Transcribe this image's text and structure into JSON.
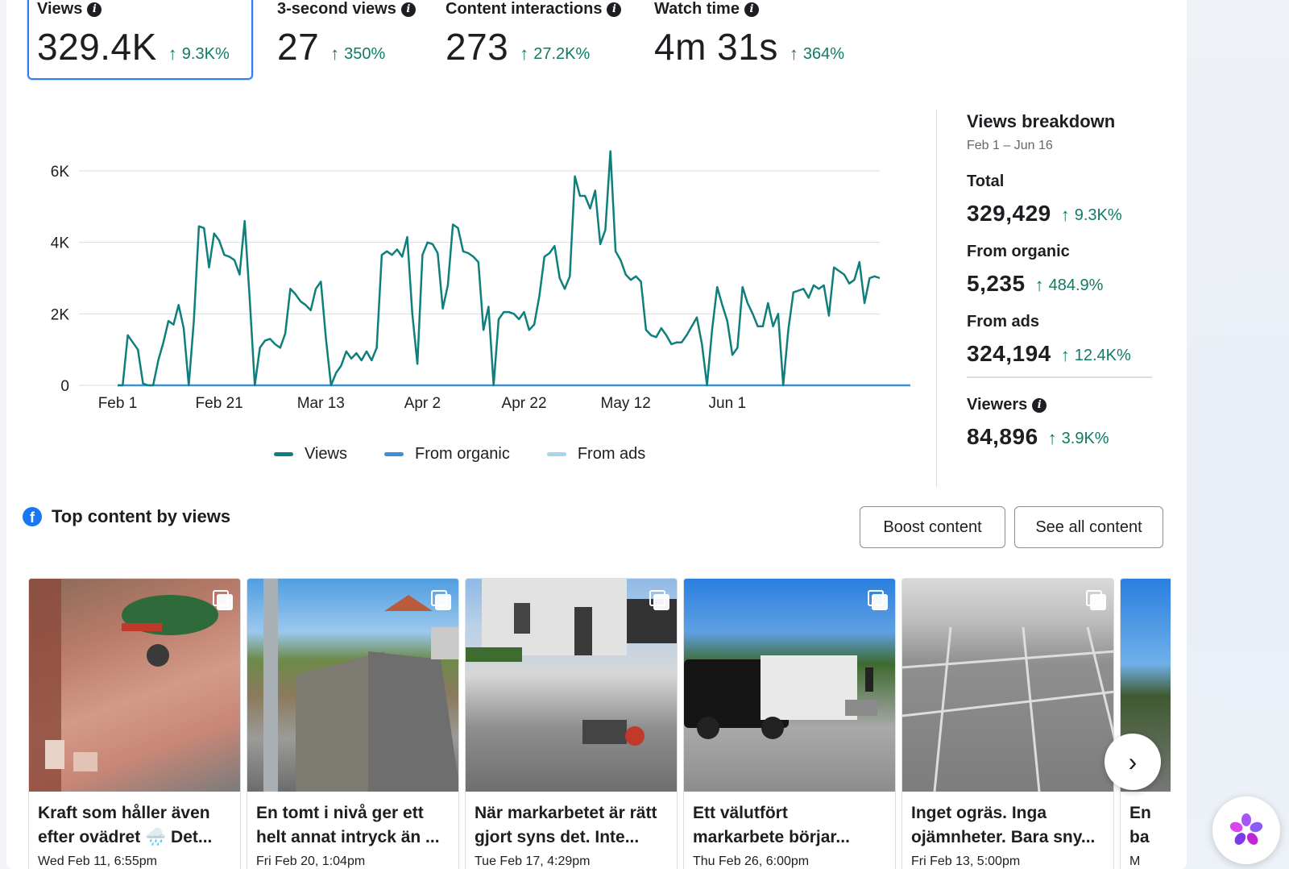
{
  "metrics": [
    {
      "label": "Views",
      "value": "329.4K",
      "delta": "9.3K%",
      "info": true,
      "selected": true
    },
    {
      "label": "3-second views",
      "value": "27",
      "delta": "350%",
      "info": true
    },
    {
      "label": "Content interactions",
      "value": "273",
      "delta": "27.2K%",
      "info": true
    },
    {
      "label": "Watch time",
      "value": "4m 31s",
      "delta": "364%",
      "info": true
    }
  ],
  "chart_data": {
    "type": "line",
    "x_ticks": [
      "Feb 1",
      "Feb 21",
      "Mar 13",
      "Apr 2",
      "Apr 22",
      "May 12",
      "Jun 1"
    ],
    "y_ticks": [
      "6K",
      "4K",
      "2K",
      "0"
    ],
    "ylim": [
      0,
      6000
    ],
    "x_range": [
      "Feb 1",
      "Jun 16"
    ],
    "grid": true,
    "legend_position": "bottom",
    "series": [
      {
        "name": "Views",
        "color": "#0e7f7a",
        "values": [
          0,
          0,
          1400,
          1200,
          1000,
          50,
          0,
          0,
          700,
          1200,
          1800,
          1700,
          2250,
          1600,
          0,
          1800,
          4450,
          4400,
          3300,
          4250,
          4050,
          3650,
          3600,
          3500,
          3100,
          4600,
          2400,
          0,
          1050,
          1250,
          1300,
          1150,
          1050,
          1450,
          2700,
          2550,
          2350,
          2250,
          2100,
          2700,
          2900,
          1300,
          0,
          350,
          550,
          950,
          750,
          900,
          700,
          950,
          700,
          1050,
          3650,
          3750,
          3650,
          3800,
          3600,
          4150,
          2000,
          600,
          3650,
          4000,
          3950,
          3700,
          2150,
          2800,
          4500,
          4400,
          3750,
          3700,
          3600,
          3450,
          1550,
          2200,
          0,
          1850,
          2050,
          2050,
          2000,
          1850,
          2050,
          1550,
          1700,
          2500,
          3600,
          3700,
          3900,
          3000,
          2700,
          3050,
          5850,
          5300,
          5300,
          4950,
          5450,
          3950,
          4350,
          6550,
          3750,
          3500,
          3100,
          2950,
          3050,
          2900,
          1550,
          1400,
          1350,
          1600,
          1400,
          1150,
          1200,
          1200,
          1400,
          1650,
          1900,
          1150,
          0,
          1550,
          2750,
          2250,
          1800,
          850,
          1050,
          2750,
          2300,
          2000,
          1650,
          1650,
          2300,
          1650,
          2000,
          0,
          1550,
          2600,
          2650,
          2700,
          2450,
          2800,
          2700,
          2800,
          1950,
          3300,
          3200,
          3100,
          2850,
          2950,
          3450,
          2300,
          3000,
          3050,
          3000
        ]
      },
      {
        "name": "From organic",
        "color": "#3b8ed8",
        "values": [
          0,
          0,
          0,
          0,
          0,
          0,
          0,
          0,
          0,
          0,
          0,
          0,
          0,
          0,
          0,
          0,
          0,
          0,
          0,
          0,
          0,
          0,
          0,
          0,
          0,
          0,
          0,
          0,
          0,
          0,
          0,
          0,
          0,
          0,
          0,
          0,
          0,
          0,
          0,
          0,
          0,
          0,
          0,
          0,
          0,
          0,
          0,
          0,
          0,
          0,
          0,
          0,
          0,
          0,
          0,
          0,
          0,
          0,
          0,
          0,
          0,
          0,
          0,
          0,
          0,
          0,
          0,
          0,
          0,
          0,
          0,
          0,
          0,
          0,
          0,
          0,
          0,
          0,
          0,
          0,
          0,
          0,
          0,
          0,
          0,
          0,
          0,
          0,
          0,
          0,
          0,
          0,
          0,
          0,
          0,
          0,
          0,
          0,
          0,
          0,
          0,
          0,
          0,
          0,
          0,
          0,
          0,
          0,
          0,
          0,
          0,
          0,
          0,
          0,
          0,
          0,
          0,
          0,
          0,
          0,
          0,
          0,
          0,
          0,
          0,
          0,
          0,
          0,
          0,
          0,
          0,
          0,
          0,
          0,
          0,
          0,
          0,
          0,
          0,
          0,
          0,
          0,
          0,
          0,
          0,
          0,
          0,
          0,
          0,
          0,
          0,
          0,
          0,
          0,
          0,
          0,
          0,
          0
        ]
      },
      {
        "name": "From ads",
        "color": "#a6d6ef",
        "values": [
          0,
          0,
          0,
          0,
          0,
          0,
          0,
          0,
          0,
          0,
          0,
          0,
          0,
          0,
          0,
          0,
          0,
          0,
          0,
          0,
          0,
          0,
          0,
          0,
          0,
          0,
          0,
          0,
          0,
          0,
          0,
          0,
          0,
          0,
          0,
          0,
          0,
          0,
          0,
          0,
          0,
          0,
          0,
          0,
          0,
          0,
          0,
          0,
          0,
          0,
          0,
          0,
          0,
          0,
          0,
          0,
          0,
          0,
          0,
          0,
          0,
          0,
          0,
          0,
          0,
          0,
          0,
          0,
          0,
          0,
          0,
          0,
          0,
          0,
          0,
          0,
          0,
          0,
          0,
          0,
          0,
          0,
          0,
          0,
          0,
          0,
          0,
          0,
          0,
          0,
          0,
          0,
          0,
          0,
          0,
          0,
          0,
          0,
          0,
          0,
          0,
          0,
          0,
          0,
          0,
          0,
          0,
          0,
          0,
          0,
          0,
          0,
          0,
          0,
          0,
          0,
          0,
          0,
          0,
          0,
          0,
          0,
          0,
          0,
          0,
          0,
          0,
          0,
          0,
          0,
          0,
          0,
          0,
          0,
          0,
          0,
          0,
          0,
          0,
          0,
          0,
          0,
          0,
          0,
          0,
          0,
          0,
          0,
          0,
          0,
          0,
          0,
          0,
          0,
          0,
          0,
          0,
          0
        ]
      }
    ]
  },
  "breakdown": {
    "title": "Views breakdown",
    "date_range": "Feb 1 – Jun 16",
    "total": {
      "label": "Total",
      "value": "329,429",
      "delta": "9.3K%"
    },
    "organic": {
      "label": "From organic",
      "value": "5,235",
      "delta": "484.9%"
    },
    "ads": {
      "label": "From ads",
      "value": "324,194",
      "delta": "12.4K%"
    },
    "viewers": {
      "label": "Viewers",
      "value": "84,896",
      "delta": "3.9K%"
    }
  },
  "top_content": {
    "title": "Top content by views",
    "boost_label": "Boost content",
    "see_all_label": "See all content",
    "next_icon": "chevron-right-icon",
    "posts": [
      {
        "caption_line1": "Kraft som håller även",
        "caption_line2": "efter ovädret 🌧️ Det...",
        "date": "Wed Feb 11, 6:55pm",
        "thumb": "brick"
      },
      {
        "caption_line1": "En tomt i nivå ger ett",
        "caption_line2": "helt annat intryck än ...",
        "date": "Fri Feb 20, 1:04pm",
        "thumb": "wall"
      },
      {
        "caption_line1": "När markarbetet är rätt",
        "caption_line2": "gjort syns det. Inte...",
        "date": "Tue Feb 17, 4:29pm",
        "thumb": "house"
      },
      {
        "caption_line1": "Ett välutfört",
        "caption_line2": "markarbete börjar...",
        "date": "Thu Feb 26, 6:00pm",
        "thumb": "truck"
      },
      {
        "caption_line1": "Inget ogräs. Inga",
        "caption_line2": "ojämnheter. Bara sny...",
        "date": "Fri Feb 13, 5:00pm",
        "thumb": "slabs"
      },
      {
        "caption_line1": "En",
        "caption_line2": "ba",
        "date": "M",
        "thumb": "sky"
      }
    ]
  }
}
